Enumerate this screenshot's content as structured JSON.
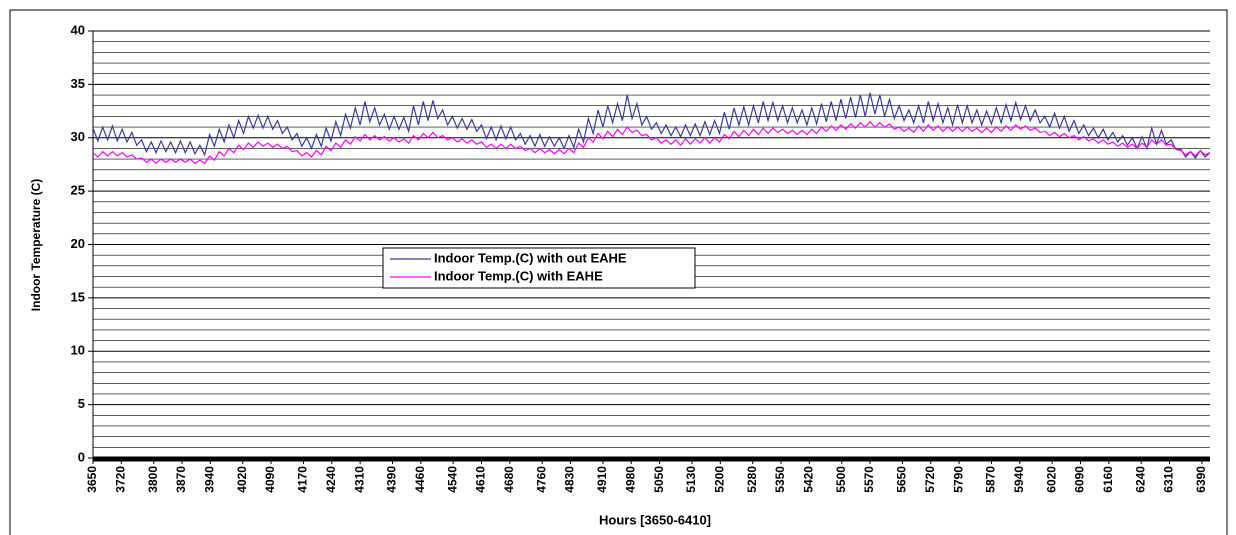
{
  "chart_data": {
    "type": "line",
    "x_label": "Hours [3650-6410]",
    "y_label": "Indoor Temperature (C)",
    "xlim": [
      3650,
      6410
    ],
    "xticks": [
      3650,
      3720,
      3800,
      3870,
      3940,
      4020,
      4090,
      4170,
      4240,
      4310,
      4390,
      4460,
      4540,
      4610,
      4680,
      4760,
      4830,
      4910,
      4980,
      5050,
      5130,
      5200,
      5280,
      5350,
      5420,
      5500,
      5570,
      5650,
      5720,
      5790,
      5870,
      5940,
      6020,
      6090,
      6160,
      6240,
      6310,
      6390
    ],
    "ylim": [
      0,
      40
    ],
    "yticks": [
      0,
      5,
      10,
      15,
      20,
      25,
      30,
      35,
      40
    ],
    "grid": true,
    "minor_grid_step": 1,
    "legend": "center",
    "x": [
      3650,
      3662,
      3674,
      3686,
      3698,
      3710,
      3722,
      3734,
      3746,
      3758,
      3770,
      3782,
      3794,
      3806,
      3818,
      3830,
      3842,
      3854,
      3866,
      3878,
      3890,
      3902,
      3914,
      3926,
      3938,
      3950,
      3962,
      3974,
      3986,
      3998,
      4010,
      4022,
      4034,
      4046,
      4058,
      4070,
      4082,
      4094,
      4106,
      4118,
      4130,
      4142,
      4154,
      4166,
      4178,
      4190,
      4202,
      4214,
      4226,
      4238,
      4250,
      4262,
      4274,
      4286,
      4298,
      4310,
      4322,
      4334,
      4346,
      4358,
      4370,
      4382,
      4394,
      4406,
      4418,
      4430,
      4442,
      4454,
      4466,
      4478,
      4490,
      4502,
      4514,
      4526,
      4538,
      4550,
      4562,
      4574,
      4586,
      4598,
      4610,
      4622,
      4634,
      4646,
      4658,
      4670,
      4682,
      4694,
      4706,
      4718,
      4730,
      4742,
      4754,
      4766,
      4778,
      4790,
      4802,
      4814,
      4826,
      4838,
      4850,
      4862,
      4874,
      4886,
      4898,
      4910,
      4922,
      4934,
      4946,
      4958,
      4970,
      4982,
      4994,
      5006,
      5018,
      5030,
      5042,
      5054,
      5066,
      5078,
      5090,
      5102,
      5114,
      5126,
      5138,
      5150,
      5162,
      5174,
      5186,
      5198,
      5210,
      5222,
      5234,
      5246,
      5258,
      5270,
      5282,
      5294,
      5306,
      5318,
      5330,
      5342,
      5354,
      5366,
      5378,
      5390,
      5402,
      5414,
      5426,
      5438,
      5450,
      5462,
      5474,
      5486,
      5498,
      5510,
      5522,
      5534,
      5546,
      5558,
      5570,
      5582,
      5594,
      5606,
      5618,
      5630,
      5642,
      5654,
      5666,
      5678,
      5690,
      5702,
      5714,
      5726,
      5738,
      5750,
      5762,
      5774,
      5786,
      5798,
      5810,
      5822,
      5834,
      5846,
      5858,
      5870,
      5882,
      5894,
      5906,
      5918,
      5930,
      5942,
      5954,
      5966,
      5978,
      5990,
      6002,
      6014,
      6026,
      6038,
      6050,
      6062,
      6074,
      6086,
      6098,
      6110,
      6122,
      6134,
      6146,
      6158,
      6170,
      6182,
      6194,
      6206,
      6218,
      6230,
      6242,
      6254,
      6266,
      6278,
      6290,
      6302,
      6314,
      6326,
      6338,
      6350,
      6362,
      6374,
      6386,
      6398,
      6410
    ],
    "series": [
      {
        "name": "Indoor Temp.(C) with out EAHE",
        "color": "#3b3b9b",
        "values": [
          30.9,
          29.7,
          31.0,
          29.8,
          31.1,
          29.7,
          30.8,
          29.6,
          30.5,
          29.3,
          29.8,
          28.7,
          29.6,
          28.6,
          29.7,
          28.7,
          29.6,
          28.6,
          29.7,
          28.6,
          29.6,
          28.5,
          29.3,
          28.4,
          30.3,
          29.2,
          30.8,
          29.6,
          31.2,
          30.0,
          31.6,
          30.4,
          32.0,
          30.9,
          32.1,
          30.9,
          32.0,
          30.8,
          31.6,
          30.4,
          31.0,
          29.8,
          30.4,
          29.2,
          30.0,
          29.0,
          30.3,
          29.2,
          30.9,
          29.7,
          31.5,
          30.2,
          32.2,
          30.9,
          32.8,
          31.2,
          33.4,
          31.5,
          32.8,
          31.2,
          32.2,
          30.8,
          32.0,
          30.8,
          31.9,
          30.6,
          33.0,
          31.2,
          33.4,
          31.6,
          33.5,
          31.8,
          32.6,
          31.2,
          32.0,
          30.9,
          31.8,
          30.8,
          31.7,
          30.6,
          31.2,
          29.9,
          31.0,
          29.8,
          31.1,
          29.9,
          31.0,
          29.8,
          30.4,
          29.4,
          30.2,
          29.2,
          30.3,
          29.2,
          30.1,
          29.2,
          30.0,
          29.0,
          30.2,
          29.1,
          30.8,
          29.6,
          31.8,
          30.4,
          32.6,
          31.0,
          33.0,
          31.4,
          33.2,
          31.6,
          34.0,
          31.8,
          33.2,
          31.2,
          32.0,
          30.8,
          31.4,
          30.4,
          31.2,
          30.2,
          31.0,
          30.1,
          31.2,
          30.2,
          31.3,
          30.2,
          31.5,
          30.3,
          31.6,
          30.4,
          32.4,
          30.8,
          32.8,
          31.2,
          32.9,
          31.2,
          33.0,
          31.4,
          33.4,
          31.6,
          33.3,
          31.6,
          33.0,
          31.4,
          32.8,
          31.4,
          32.6,
          31.2,
          32.8,
          31.3,
          33.2,
          31.5,
          33.4,
          31.6,
          33.6,
          31.8,
          33.8,
          31.9,
          34.0,
          32.0,
          34.2,
          32.2,
          34.0,
          32.0,
          33.6,
          31.8,
          33.0,
          31.6,
          32.6,
          31.4,
          33.0,
          31.4,
          33.4,
          31.6,
          33.2,
          31.4,
          32.8,
          31.2,
          33.1,
          31.4,
          33.0,
          31.4,
          32.6,
          31.2,
          32.5,
          31.3,
          32.8,
          31.4,
          33.1,
          31.6,
          33.3,
          31.7,
          33.0,
          31.6,
          32.6,
          31.4,
          32.0,
          31.0,
          32.3,
          30.9,
          32.0,
          30.6,
          31.6,
          30.4,
          31.2,
          30.2,
          30.9,
          30.0,
          30.8,
          29.8,
          30.5,
          29.6,
          30.2,
          29.3,
          30.0,
          29.0,
          30.1,
          29.0,
          30.9,
          29.4,
          30.7,
          29.4,
          29.8,
          28.9,
          28.9,
          28.2,
          28.7,
          28.1,
          28.8,
          28.2,
          28.6
        ]
      },
      {
        "name": "Indoor Temp.(C) with EAHE",
        "color": "#ff00ff",
        "values": [
          28.6,
          28.2,
          28.7,
          28.3,
          28.7,
          28.3,
          28.6,
          28.2,
          28.4,
          28.0,
          28.1,
          27.7,
          28.0,
          27.6,
          28.0,
          27.7,
          28.0,
          27.7,
          28.0,
          27.7,
          28.0,
          27.6,
          27.9,
          27.6,
          28.3,
          27.9,
          28.7,
          28.3,
          29.0,
          28.6,
          29.3,
          28.9,
          29.5,
          29.1,
          29.6,
          29.2,
          29.5,
          29.1,
          29.4,
          29.0,
          29.2,
          28.7,
          28.8,
          28.3,
          28.6,
          28.2,
          28.8,
          28.4,
          29.2,
          28.8,
          29.5,
          29.1,
          29.8,
          29.4,
          30.1,
          29.7,
          30.3,
          29.8,
          30.2,
          29.8,
          30.1,
          29.7,
          30.0,
          29.6,
          29.9,
          29.5,
          30.2,
          29.8,
          30.4,
          30.0,
          30.5,
          30.0,
          30.2,
          29.8,
          30.0,
          29.6,
          29.9,
          29.5,
          29.8,
          29.4,
          29.6,
          29.1,
          29.4,
          29.0,
          29.4,
          29.0,
          29.4,
          29.0,
          29.2,
          28.8,
          29.0,
          28.6,
          29.0,
          28.6,
          28.9,
          28.5,
          28.9,
          28.5,
          29.0,
          28.6,
          29.5,
          29.1,
          30.0,
          29.6,
          30.4,
          29.9,
          30.6,
          30.1,
          30.8,
          30.3,
          31.0,
          30.5,
          30.7,
          30.2,
          30.3,
          29.8,
          30.0,
          29.5,
          29.8,
          29.4,
          29.8,
          29.3,
          29.9,
          29.4,
          29.9,
          29.5,
          30.0,
          29.5,
          30.0,
          29.6,
          30.3,
          29.9,
          30.6,
          30.1,
          30.7,
          30.2,
          30.8,
          30.3,
          30.9,
          30.4,
          30.9,
          30.5,
          30.8,
          30.4,
          30.7,
          30.3,
          30.7,
          30.3,
          30.8,
          30.4,
          31.0,
          30.6,
          31.1,
          30.7,
          31.2,
          30.8,
          31.3,
          30.9,
          31.4,
          31.0,
          31.5,
          31.0,
          31.4,
          31.0,
          31.3,
          30.8,
          31.0,
          30.6,
          30.9,
          30.5,
          31.1,
          30.6,
          31.2,
          30.7,
          31.1,
          30.6,
          31.0,
          30.6,
          31.0,
          30.6,
          31.0,
          30.6,
          30.9,
          30.5,
          30.9,
          30.5,
          31.0,
          30.6,
          31.1,
          30.7,
          31.2,
          30.8,
          31.1,
          30.7,
          30.9,
          30.5,
          30.6,
          30.2,
          30.5,
          30.1,
          30.4,
          30.0,
          30.2,
          29.8,
          30.1,
          29.7,
          29.9,
          29.5,
          29.8,
          29.4,
          29.6,
          29.2,
          29.5,
          29.1,
          29.4,
          29.0,
          29.5,
          29.1,
          29.8,
          29.4,
          29.8,
          29.3,
          29.4,
          28.9,
          28.8,
          28.4,
          28.7,
          28.3,
          28.8,
          28.4,
          28.6
        ]
      }
    ]
  }
}
